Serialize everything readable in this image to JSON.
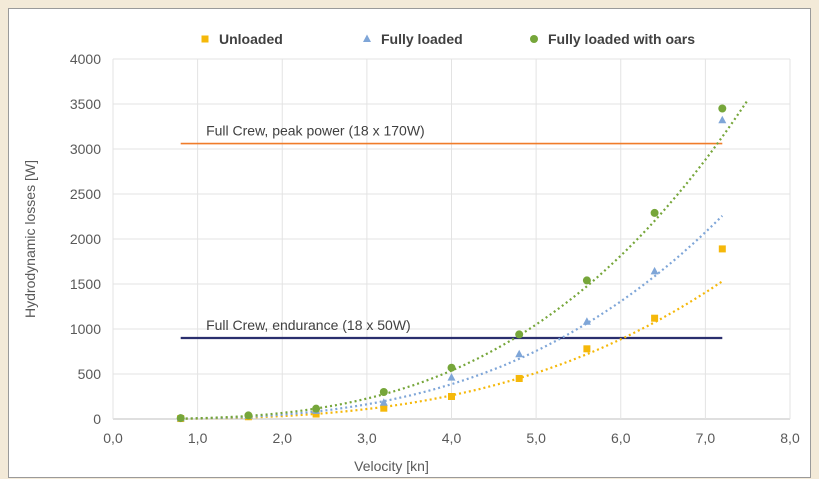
{
  "chart_data": {
    "type": "scatter",
    "title": "",
    "xlabel": "Velocity [kn]",
    "ylabel": "Hydrodynamic losses [W]",
    "xlim": [
      0,
      8
    ],
    "ylim": [
      0,
      4000
    ],
    "x_ticks": [
      "0,0",
      "1,0",
      "2,0",
      "3,0",
      "4,0",
      "5,0",
      "6,0",
      "7,0",
      "8,0"
    ],
    "y_ticks": [
      "0",
      "500",
      "1000",
      "1500",
      "2000",
      "2500",
      "3000",
      "3500",
      "4000"
    ],
    "grid": true,
    "legend_position": "top",
    "series": [
      {
        "name": "Unloaded",
        "color": "#f5b80a",
        "marker": "square",
        "x": [
          0.8,
          1.6,
          2.4,
          3.2,
          4.0,
          4.8,
          5.6,
          6.4,
          7.2
        ],
        "y": [
          5,
          25,
          55,
          120,
          250,
          450,
          780,
          1120,
          1890
        ],
        "trendline": {
          "type": "cubic",
          "coeff": 4.1,
          "x_range": [
            0.8,
            7.2
          ],
          "color": "#f5b80a"
        }
      },
      {
        "name": "Fully loaded",
        "color": "#7fa6d8",
        "marker": "triangle",
        "x": [
          0.8,
          1.6,
          2.4,
          3.2,
          4.0,
          4.8,
          5.6,
          6.4,
          7.2
        ],
        "y": [
          8,
          35,
          90,
          180,
          460,
          720,
          1080,
          1640,
          3320
        ],
        "trendline": {
          "type": "cubic",
          "coeff": 6.05,
          "x_range": [
            0.8,
            7.2
          ],
          "color": "#7fa6d8"
        }
      },
      {
        "name": "Fully loaded with oars",
        "color": "#76a63a",
        "marker": "circle",
        "x": [
          0.8,
          1.6,
          2.4,
          3.2,
          4.0,
          4.8,
          5.6,
          6.4,
          7.2
        ],
        "y": [
          10,
          40,
          115,
          300,
          570,
          940,
          1540,
          2290,
          3450
        ],
        "trendline": {
          "type": "cubic",
          "coeff": 8.4,
          "x_range": [
            0.8,
            7.5
          ],
          "color": "#76a63a"
        }
      }
    ],
    "reference_lines": [
      {
        "label": "Full Crew, peak power (18 x 170W)",
        "y": 3060,
        "x_range": [
          0.8,
          7.2
        ],
        "color": "#f07c2a"
      },
      {
        "label": "Full Crew, endurance (18 x 50W)",
        "y": 900,
        "x_range": [
          0.8,
          7.2
        ],
        "color": "#2a2f6e"
      }
    ]
  }
}
